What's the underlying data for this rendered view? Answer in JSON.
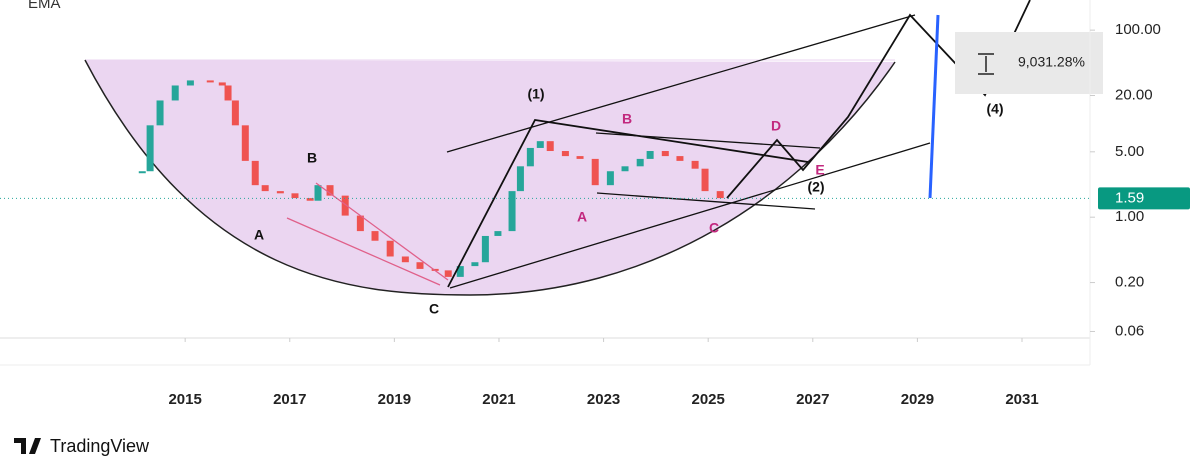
{
  "chart_data": {
    "type": "candlestick",
    "indicator": "EMA",
    "log_scale": true,
    "x": [
      2014.18,
      2014.33,
      2014.52,
      2014.81,
      2015.1,
      2015.48,
      2015.71,
      2015.82,
      2015.96,
      2016.15,
      2016.34,
      2016.53,
      2016.82,
      2017.1,
      2017.39,
      2017.54,
      2017.77,
      2018.06,
      2018.35,
      2018.63,
      2018.92,
      2019.21,
      2019.49,
      2019.78,
      2020.03,
      2020.26,
      2020.54,
      2020.74,
      2020.98,
      2021.25,
      2021.41,
      2021.6,
      2021.79,
      2021.98,
      2022.27,
      2022.55,
      2022.84,
      2023.13,
      2023.41,
      2023.7,
      2023.89,
      2024.18,
      2024.46,
      2024.75,
      2024.94,
      2025.23
    ],
    "values": [
      3.1,
      9.6,
      17.7,
      25.6,
      29,
      27.6,
      25.6,
      17.7,
      9.6,
      4,
      2.2,
      1.9,
      1.8,
      1.6,
      1.5,
      2.2,
      1.7,
      1.04,
      0.71,
      0.56,
      0.38,
      0.33,
      0.28,
      0.27,
      0.23,
      0.3,
      0.33,
      0.63,
      0.71,
      1.9,
      3.5,
      5.5,
      6.5,
      5.1,
      4.5,
      4.2,
      2.2,
      3.1,
      3.5,
      4.2,
      5.1,
      4.5,
      4,
      3.3,
      1.9,
      1.6
    ],
    "up_color": "#26a69a",
    "down_color": "#ef5350",
    "last_price": 1.59,
    "xlim": [
      2011.46,
      2032.3
    ],
    "xticks": [
      2015,
      2017,
      2019,
      2021,
      2023,
      2025,
      2027,
      2029,
      2031
    ],
    "ylim": [
      0.055,
      210
    ],
    "yticks": [
      {
        "value": 100,
        "label": "100.00"
      },
      {
        "value": 20,
        "label": "20.00"
      },
      {
        "value": 5,
        "label": "5.00"
      },
      {
        "value": 1,
        "label": "1.00"
      },
      {
        "value": 0.2,
        "label": "0.20"
      },
      {
        "value": 0.06,
        "label": "0.06"
      }
    ],
    "measurement": "9,031.28%",
    "annotations": [
      "(1)",
      "B",
      "A",
      "C",
      "B",
      "A",
      "C",
      "D",
      "E",
      "(2)",
      "(4)"
    ],
    "brand": "TradingView"
  }
}
